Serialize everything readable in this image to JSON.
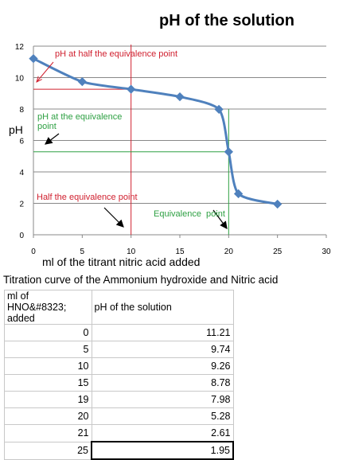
{
  "chart_data": {
    "type": "line",
    "title": "pH of the solution",
    "xlabel": "ml of the titrant nitric acid added",
    "ylabel": "pH",
    "xlim": [
      0,
      30
    ],
    "ylim": [
      0,
      12
    ],
    "xticks": [
      0,
      5,
      10,
      15,
      20,
      25,
      30
    ],
    "yticks": [
      0,
      2,
      4,
      6,
      8,
      10,
      12
    ],
    "grid": "horizontal",
    "series": [
      {
        "x": [
          0,
          5,
          10,
          15,
          19,
          20,
          21,
          25
        ],
        "y": [
          11.21,
          9.74,
          9.26,
          8.78,
          7.98,
          5.28,
          2.61,
          1.95
        ],
        "color": "#4f81bd"
      }
    ],
    "annotations": [
      {
        "text": "pH at half the equivalence point",
        "color": "#d0202f"
      },
      {
        "text": "pH at the equivalence point",
        "color": "#2ea043"
      },
      {
        "text": "Half the equivalence point",
        "color": "#d0202f"
      },
      {
        "text": "Equivalence  point",
        "color": "#2ea043"
      }
    ],
    "reference_lines": [
      {
        "x": 10,
        "y": 9.26,
        "color": "#d0202f"
      },
      {
        "x": 20,
        "y": 5.28,
        "color": "#2ea043"
      }
    ]
  },
  "table": {
    "caption": "Titration curve of the Ammonium hydroxide and Nitric acid",
    "headers": [
      "ml of HNO&#8323; added",
      "pH of the solution"
    ],
    "rows": [
      [
        "0",
        "11.21"
      ],
      [
        "5",
        "9.74"
      ],
      [
        "10",
        "9.26"
      ],
      [
        "15",
        "8.78"
      ],
      [
        "19",
        "7.98"
      ],
      [
        "20",
        "5.28"
      ],
      [
        "21",
        "2.61"
      ],
      [
        "25",
        "1.95"
      ]
    ]
  }
}
